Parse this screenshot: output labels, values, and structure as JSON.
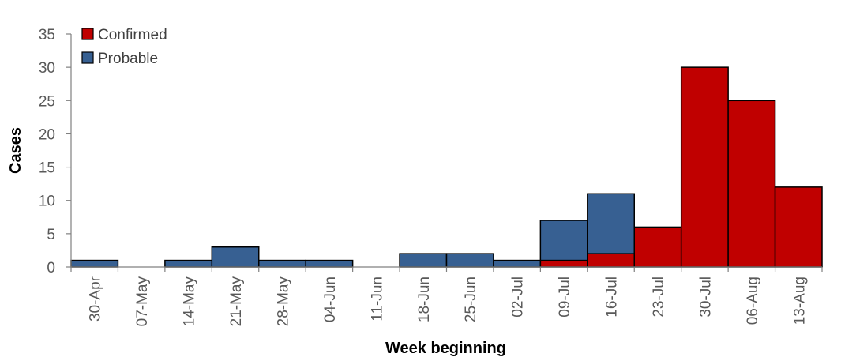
{
  "chart_data": {
    "type": "bar",
    "stacked": true,
    "title": "",
    "xlabel": "Week beginning",
    "ylabel": "Cases",
    "ylim": [
      0,
      35
    ],
    "yticks": [
      0,
      5,
      10,
      15,
      20,
      25,
      30,
      35
    ],
    "grid": false,
    "legend_position": "top-left",
    "categories": [
      "30-Apr",
      "07-May",
      "14-May",
      "21-May",
      "28-May",
      "04-Jun",
      "11-Jun",
      "18-Jun",
      "25-Jun",
      "02-Jul",
      "09-Jul",
      "16-Jul",
      "23-Jul",
      "30-Jul",
      "06-Aug",
      "13-Aug"
    ],
    "series": [
      {
        "name": "Confirmed",
        "color": "#C00000",
        "values": [
          0,
          0,
          0,
          0,
          0,
          0,
          0,
          0,
          0,
          0,
          1,
          2,
          6,
          30,
          25,
          12
        ]
      },
      {
        "name": "Probable",
        "color": "#376092",
        "values": [
          1,
          0,
          1,
          3,
          1,
          1,
          0,
          2,
          2,
          1,
          6,
          9,
          0,
          0,
          0,
          0
        ]
      }
    ]
  }
}
